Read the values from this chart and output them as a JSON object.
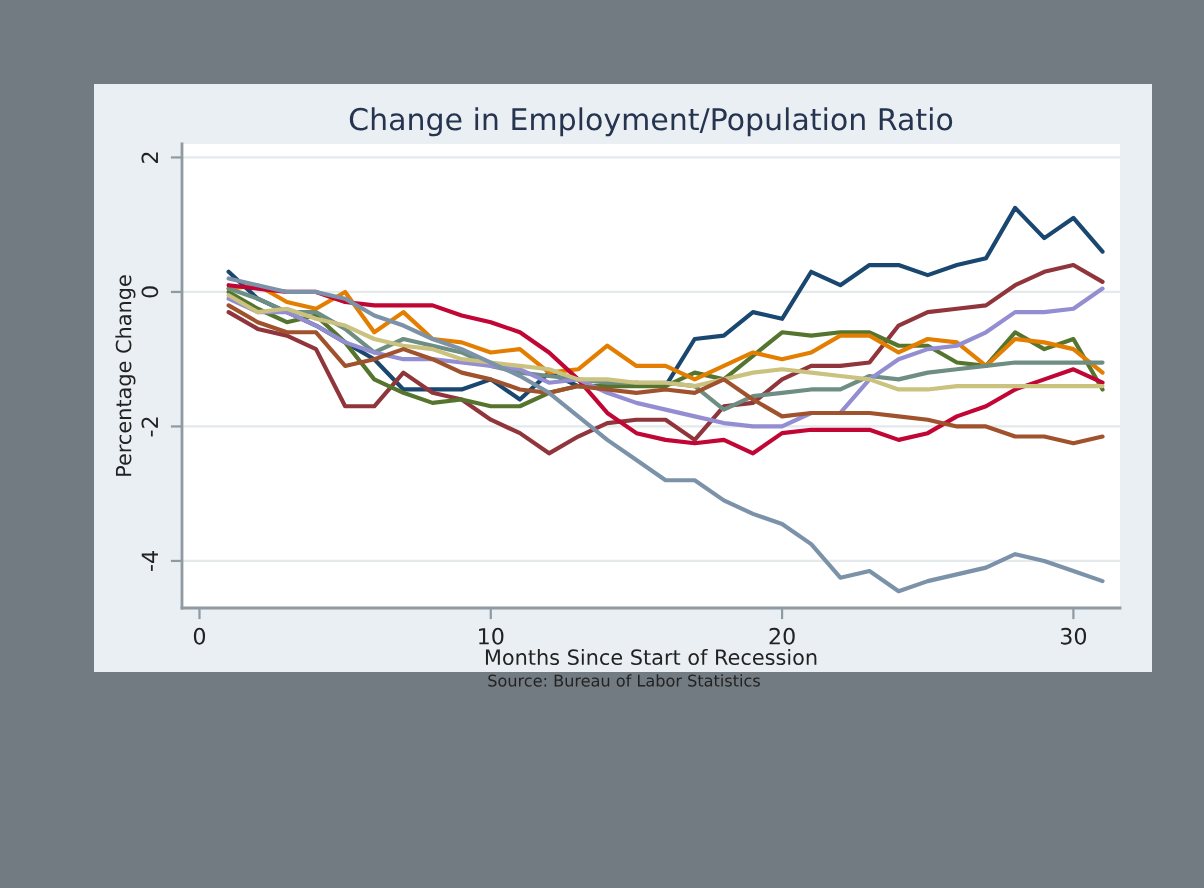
{
  "chart_data": {
    "type": "line",
    "title": "Change in Employment/Population Ratio",
    "xlabel": "Months Since Start of Recession",
    "ylabel": "Percentage Change",
    "annotations": [
      "Source: Bureau of Labor Statistics"
    ],
    "x": [
      1,
      2,
      3,
      4,
      5,
      6,
      7,
      8,
      9,
      10,
      11,
      12,
      13,
      14,
      15,
      16,
      17,
      18,
      19,
      20,
      21,
      22,
      23,
      24,
      25,
      26,
      27,
      28,
      29,
      30,
      31
    ],
    "xlim": [
      -0.6,
      31.6
    ],
    "xticks": [
      0,
      10,
      20,
      30
    ],
    "ylim": [
      -4.7,
      2.2
    ],
    "yticks": [
      -4,
      -2,
      0,
      2
    ],
    "grid": "y",
    "line_style": "solid",
    "series": [
      {
        "color": "#1a476f",
        "values": [
          0.3,
          -0.1,
          -0.3,
          -0.5,
          -0.75,
          -1.0,
          -1.45,
          -1.45,
          -1.45,
          -1.3,
          -1.6,
          -1.2,
          -1.4,
          -1.4,
          -1.35,
          -1.4,
          -0.7,
          -0.65,
          -0.3,
          -0.4,
          0.3,
          0.1,
          0.4,
          0.4,
          0.25,
          0.4,
          0.5,
          1.25,
          0.8,
          1.1,
          0.6
        ]
      },
      {
        "color": "#90353b",
        "values": [
          -0.3,
          -0.55,
          -0.65,
          -0.85,
          -1.7,
          -1.7,
          -1.2,
          -1.5,
          -1.6,
          -1.9,
          -2.1,
          -2.4,
          -2.15,
          -1.95,
          -1.9,
          -1.9,
          -2.2,
          -1.7,
          -1.65,
          -1.3,
          -1.1,
          -1.1,
          -1.05,
          -0.5,
          -0.3,
          -0.25,
          -0.2,
          0.1,
          0.3,
          0.4,
          0.15
        ]
      },
      {
        "color": "#55752f",
        "values": [
          0.0,
          -0.25,
          -0.45,
          -0.35,
          -0.75,
          -1.3,
          -1.5,
          -1.65,
          -1.6,
          -1.7,
          -1.7,
          -1.5,
          -1.4,
          -1.4,
          -1.4,
          -1.4,
          -1.2,
          -1.3,
          -0.95,
          -0.6,
          -0.65,
          -0.6,
          -0.6,
          -0.8,
          -0.8,
          -1.05,
          -1.1,
          -0.6,
          -0.85,
          -0.7,
          -1.45
        ]
      },
      {
        "color": "#e37e00",
        "values": [
          0.05,
          0.1,
          -0.15,
          -0.25,
          0.0,
          -0.6,
          -0.3,
          -0.7,
          -0.75,
          -0.9,
          -0.85,
          -1.2,
          -1.15,
          -0.8,
          -1.1,
          -1.1,
          -1.3,
          -1.1,
          -0.9,
          -1.0,
          -0.9,
          -0.65,
          -0.65,
          -0.9,
          -0.7,
          -0.75,
          -1.1,
          -0.7,
          -0.75,
          -0.85,
          -1.2
        ]
      },
      {
        "color": "#6e8e84",
        "values": [
          0.05,
          -0.1,
          -0.3,
          -0.3,
          -0.55,
          -0.9,
          -0.7,
          -0.8,
          -0.9,
          -1.1,
          -1.2,
          -1.25,
          -1.3,
          -1.35,
          -1.35,
          -1.35,
          -1.4,
          -1.75,
          -1.55,
          -1.5,
          -1.45,
          -1.45,
          -1.25,
          -1.3,
          -1.2,
          -1.15,
          -1.1,
          -1.05,
          -1.05,
          -1.05,
          -1.05
        ]
      },
      {
        "color": "#c10534",
        "values": [
          0.1,
          0.05,
          0.0,
          0.0,
          -0.15,
          -0.2,
          -0.2,
          -0.2,
          -0.35,
          -0.45,
          -0.6,
          -0.9,
          -1.3,
          -1.8,
          -2.1,
          -2.2,
          -2.25,
          -2.2,
          -2.4,
          -2.1,
          -2.05,
          -2.05,
          -2.05,
          -2.2,
          -2.1,
          -1.85,
          -1.7,
          -1.45,
          -1.3,
          -1.15,
          -1.35
        ]
      },
      {
        "color": "#938dd2",
        "values": [
          -0.1,
          -0.3,
          -0.3,
          -0.5,
          -0.75,
          -0.9,
          -1.0,
          -1.0,
          -1.05,
          -1.1,
          -1.15,
          -1.35,
          -1.3,
          -1.5,
          -1.65,
          -1.75,
          -1.85,
          -1.95,
          -2.0,
          -2.0,
          -1.8,
          -1.8,
          -1.3,
          -1.0,
          -0.85,
          -0.8,
          -0.6,
          -0.3,
          -0.3,
          -0.25,
          0.05
        ]
      },
      {
        "color": "#cac27e",
        "values": [
          -0.05,
          -0.3,
          -0.25,
          -0.4,
          -0.5,
          -0.7,
          -0.8,
          -0.85,
          -1.0,
          -1.05,
          -1.1,
          -1.15,
          -1.3,
          -1.3,
          -1.35,
          -1.35,
          -1.4,
          -1.3,
          -1.2,
          -1.15,
          -1.2,
          -1.25,
          -1.3,
          -1.45,
          -1.45,
          -1.4,
          -1.4,
          -1.4,
          -1.4,
          -1.4,
          -1.4
        ]
      },
      {
        "color": "#a0522d",
        "values": [
          -0.2,
          -0.45,
          -0.6,
          -0.6,
          -1.1,
          -1.0,
          -0.85,
          -1.0,
          -1.2,
          -1.3,
          -1.45,
          -1.5,
          -1.4,
          -1.45,
          -1.5,
          -1.45,
          -1.5,
          -1.3,
          -1.6,
          -1.85,
          -1.8,
          -1.8,
          -1.8,
          -1.85,
          -1.9,
          -2.0,
          -2.0,
          -2.15,
          -2.15,
          -2.25,
          -2.15
        ]
      },
      {
        "color": "#7b92a8",
        "values": [
          0.2,
          0.1,
          0.0,
          0.0,
          -0.1,
          -0.35,
          -0.5,
          -0.7,
          -0.85,
          -1.05,
          -1.25,
          -1.5,
          -1.85,
          -2.2,
          -2.5,
          -2.8,
          -2.8,
          -3.1,
          -3.3,
          -3.45,
          -3.75,
          -4.25,
          -4.15,
          -4.45,
          -4.3,
          -4.2,
          -4.1,
          -3.9,
          -4.0,
          -4.15,
          -4.3
        ]
      }
    ]
  }
}
